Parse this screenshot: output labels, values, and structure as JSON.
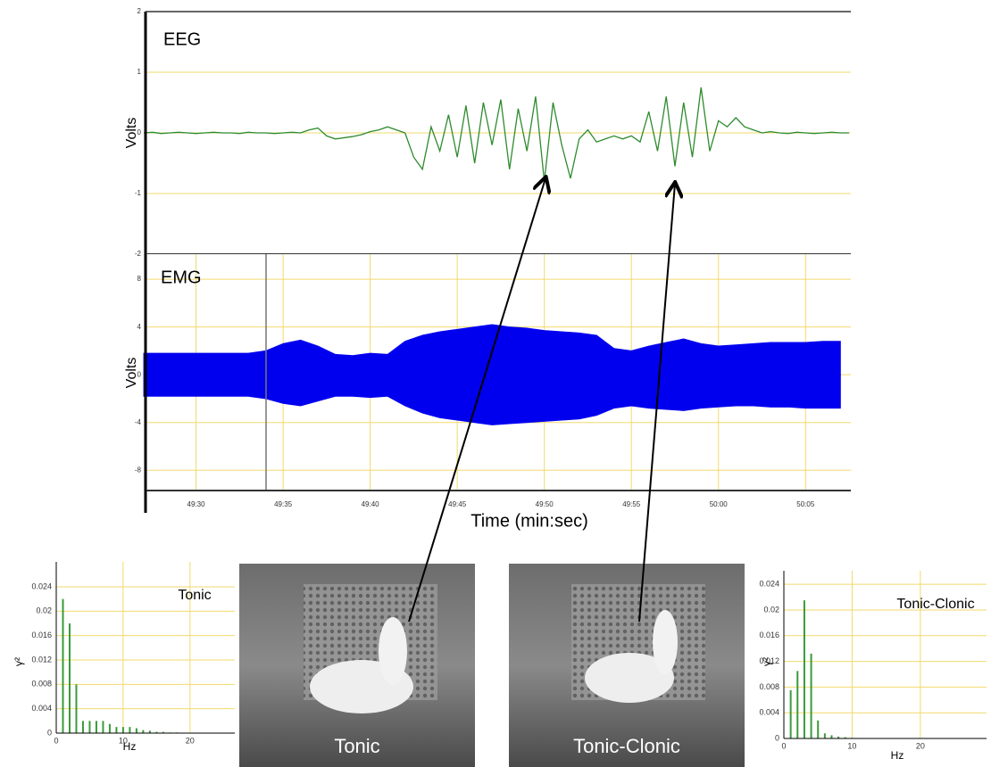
{
  "chart_data": [
    {
      "type": "line",
      "annotation": "EEG",
      "ylabel": "Volts",
      "x": [
        2967,
        2967.5,
        2968,
        2968.5,
        2969,
        2969.5,
        2970,
        2970.5,
        2971,
        2971.5,
        2972,
        2972.5,
        2973,
        2973.5,
        2974,
        2974.5,
        2975,
        2975.5,
        2976,
        2976.5,
        2977,
        2977.5,
        2978,
        2978.5,
        2979,
        2979.5,
        2980,
        2980.5,
        2981,
        2981.5,
        2982,
        2982.5,
        2983,
        2983.5,
        2984,
        2984.5,
        2985,
        2985.5,
        2986,
        2986.5,
        2987,
        2987.5,
        2988,
        2988.5,
        2989,
        2989.5,
        2990,
        2990.5,
        2991,
        2991.5,
        2992,
        2992.5,
        2993,
        2993.5,
        2994,
        2994.5,
        2995,
        2995.5,
        2996,
        2996.5,
        2997,
        2997.5,
        2998,
        2998.5,
        2999,
        2999.5,
        3000,
        3000.5,
        3001,
        3001.5,
        3002,
        3002.5,
        3003,
        3003.5,
        3004,
        3004.5,
        3005,
        3005.5,
        3006,
        3006.5,
        3007,
        3007.5
      ],
      "series": [
        {
          "color": "#2e8b2e",
          "values": [
            0,
            0.01,
            -0.01,
            0,
            0.01,
            0,
            -0.01,
            0,
            0.01,
            0,
            0,
            -0.01,
            0.01,
            0,
            0,
            -0.01,
            0,
            0.01,
            0,
            0.05,
            0.08,
            -0.05,
            -0.1,
            -0.08,
            -0.06,
            -0.03,
            0.02,
            0.05,
            0.1,
            0.05,
            0,
            -0.4,
            -0.6,
            0.1,
            -0.3,
            0.3,
            -0.4,
            0.45,
            -0.5,
            0.5,
            -0.2,
            0.55,
            -0.6,
            0.4,
            -0.3,
            0.6,
            -0.8,
            0.5,
            -0.2,
            -0.75,
            -0.1,
            0.05,
            -0.15,
            -0.1,
            -0.05,
            -0.1,
            -0.05,
            -0.15,
            0.35,
            -0.3,
            0.6,
            -0.55,
            0.5,
            -0.4,
            0.75,
            -0.3,
            0.2,
            0.1,
            0.25,
            0.1,
            0.05,
            0,
            0.02,
            0,
            -0.01,
            0.01,
            0,
            -0.01,
            0,
            0.01,
            0,
            0
          ]
        }
      ],
      "xlim": [
        2967.1,
        3007.6
      ],
      "ylim": [
        -2,
        2
      ],
      "yticks": [
        -2,
        -1,
        0,
        1,
        2
      ],
      "grid": true
    },
    {
      "type": "area",
      "annotation": "EMG",
      "ylabel": "Volts",
      "xlabel": "Time (min:sec)",
      "x": [
        2967,
        2968,
        2969,
        2970,
        2971,
        2972,
        2973,
        2974,
        2975,
        2976,
        2977,
        2978,
        2979,
        2980,
        2981,
        2982,
        2983,
        2984,
        2985,
        2986,
        2987,
        2988,
        2989,
        2990,
        2991,
        2992,
        2993,
        2994,
        2995,
        2996,
        2997,
        2998,
        2999,
        3000,
        3001,
        3002,
        3003,
        3004,
        3005,
        3006,
        3007
      ],
      "series": [
        {
          "color": "#0000ee",
          "values": [
            1.8,
            1.8,
            1.8,
            1.8,
            1.8,
            1.8,
            1.8,
            2.0,
            2.6,
            2.9,
            2.4,
            1.7,
            1.6,
            1.8,
            1.7,
            2.8,
            3.3,
            3.6,
            3.8,
            4.0,
            4.2,
            4.0,
            3.9,
            3.7,
            3.6,
            3.5,
            3.3,
            2.2,
            2.0,
            2.4,
            2.7,
            3.0,
            2.6,
            2.4,
            2.5,
            2.6,
            2.7,
            2.7,
            2.7,
            2.8,
            2.8
          ]
        },
        {
          "color": "#0000ee",
          "values": [
            -1.8,
            -1.8,
            -1.8,
            -1.8,
            -1.8,
            -1.8,
            -1.8,
            -2.0,
            -2.4,
            -2.6,
            -2.2,
            -1.8,
            -1.8,
            -1.9,
            -1.8,
            -2.6,
            -3.2,
            -3.6,
            -3.8,
            -4.0,
            -4.2,
            -4.1,
            -4.0,
            -3.9,
            -3.8,
            -3.7,
            -3.4,
            -2.8,
            -2.6,
            -2.8,
            -2.9,
            -3.0,
            -2.8,
            -2.7,
            -2.6,
            -2.6,
            -2.7,
            -2.7,
            -2.8,
            -2.8,
            -2.8
          ]
        }
      ],
      "xlim": [
        2967.1,
        3007.6
      ],
      "ylim": [
        -9.7,
        10.1
      ],
      "yticks": [
        -8,
        -4,
        0,
        4,
        8
      ],
      "xticks": [
        {
          "value": 2970,
          "label": "49:30"
        },
        {
          "value": 2975,
          "label": "49:35"
        },
        {
          "value": 2980,
          "label": "49:40"
        },
        {
          "value": 2985,
          "label": "49:45"
        },
        {
          "value": 2990,
          "label": "49:50"
        },
        {
          "value": 2995,
          "label": "49:55"
        },
        {
          "value": 3000,
          "label": "50:00"
        },
        {
          "value": 3005,
          "label": "50:05"
        }
      ],
      "grid": true
    },
    {
      "type": "bar",
      "annotation": "Tonic",
      "ylabel": "γ²",
      "xlabel": "Hz",
      "color": "#3a9a3a",
      "x": [
        1,
        2,
        3,
        4,
        5,
        6,
        7,
        8,
        9,
        10,
        11,
        12,
        13,
        14,
        15,
        16,
        17,
        18
      ],
      "values": [
        0.022,
        0.018,
        0.008,
        0.002,
        0.002,
        0.002,
        0.002,
        0.0015,
        0.001,
        0.001,
        0.001,
        0.0008,
        0.0005,
        0.0004,
        0.0002,
        0.0002,
        0.0001,
        0.0001
      ],
      "xlim": [
        0,
        26.7
      ],
      "ylim": [
        0,
        0.0281
      ],
      "xticks": [
        0,
        10,
        20
      ],
      "yticks": [
        0,
        0.004,
        0.008,
        0.012,
        0.016,
        0.02,
        0.024
      ],
      "grid": true
    },
    {
      "type": "bar",
      "annotation": "Tonic-Clonic",
      "ylabel": "γ²",
      "xlabel": "Hz",
      "color": "#3a9a3a",
      "x": [
        1,
        2,
        3,
        4,
        5,
        6,
        7,
        8,
        9,
        10
      ],
      "values": [
        0.0075,
        0.0105,
        0.0215,
        0.0132,
        0.0028,
        0.0008,
        0.0005,
        0.0003,
        0.0002,
        0.0001
      ],
      "xlim": [
        0,
        29.7
      ],
      "ylim": [
        0,
        0.0261
      ],
      "xticks": [
        0,
        10,
        20
      ],
      "yticks": [
        0,
        0.004,
        0.008,
        0.012,
        0.016,
        0.02,
        0.024
      ],
      "grid": true
    }
  ],
  "photos": [
    {
      "caption": "Tonic"
    },
    {
      "caption": "Tonic-Clonic"
    }
  ]
}
